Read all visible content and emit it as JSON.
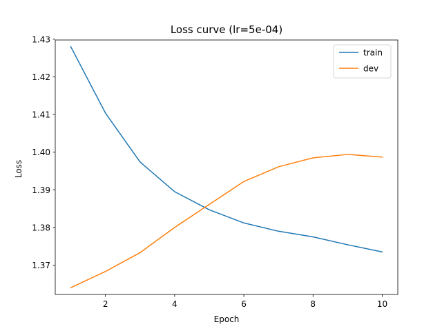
{
  "chart_data": {
    "type": "line",
    "title": "Loss curve (lr=5e-04)",
    "xlabel": "Epoch",
    "ylabel": "Loss",
    "x": [
      1,
      2,
      3,
      4,
      5,
      6,
      7,
      8,
      9,
      10
    ],
    "series": [
      {
        "name": "train",
        "color": "#1f77b4",
        "values": [
          1.428,
          1.4104,
          1.3974,
          1.3895,
          1.3847,
          1.3812,
          1.379,
          1.3775,
          1.3754,
          1.3735
        ]
      },
      {
        "name": "dev",
        "color": "#ff7f0e",
        "values": [
          1.364,
          1.3683,
          1.3733,
          1.38,
          1.3861,
          1.3922,
          1.3961,
          1.3985,
          1.3994,
          1.3987
        ]
      }
    ],
    "xlim": [
      0.55,
      10.45
    ],
    "ylim": [
      1.3622,
      1.4298
    ],
    "xticks": [
      2,
      4,
      6,
      8,
      10
    ],
    "yticks": [
      1.37,
      1.38,
      1.39,
      1.4,
      1.41,
      1.42,
      1.43
    ],
    "xtick_labels": [
      "2",
      "4",
      "6",
      "8",
      "10"
    ],
    "ytick_labels": [
      "1.37",
      "1.38",
      "1.39",
      "1.40",
      "1.41",
      "1.42",
      "1.43"
    ],
    "grid": false,
    "legend": "upper right"
  }
}
